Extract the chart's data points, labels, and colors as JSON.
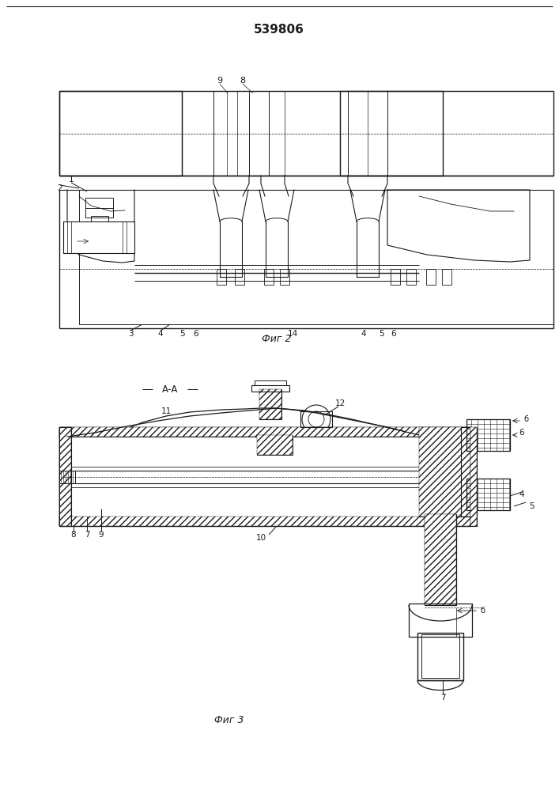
{
  "title": "539806",
  "bg_color": "#ffffff",
  "line_color": "#1a1a1a",
  "fig2_label": "Фиг 2",
  "fig3_label": "Фиг 3",
  "fig3_section": "А-А"
}
